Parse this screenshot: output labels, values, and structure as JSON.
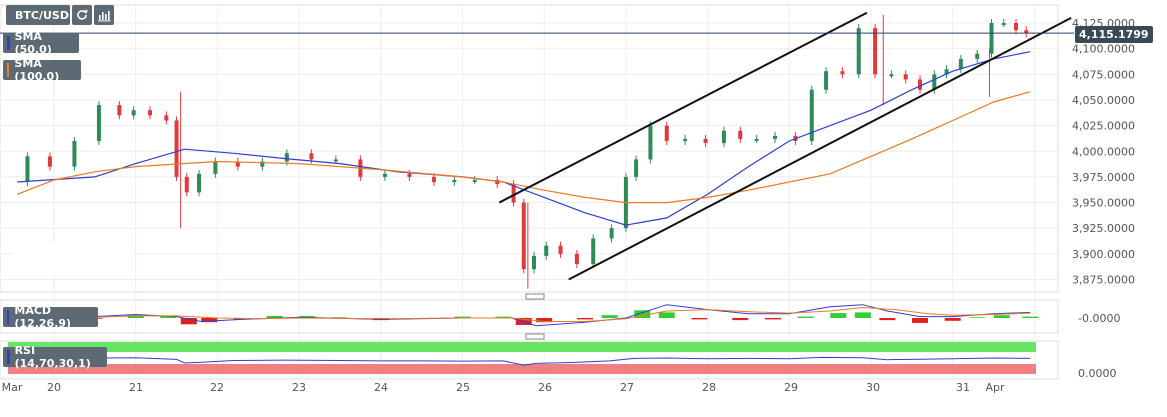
{
  "toolbar": {
    "symbol": "BTC/USD",
    "refresh_icon": "refresh-icon",
    "bars_icon": "bar-chart-icon"
  },
  "legend": {
    "sma50": "SMA (50,0)",
    "sma100": "SMA (100,0)",
    "macd": "MACD (12,26,9)",
    "rsi": "RSI (14,70,30,1)"
  },
  "price_tag": "4,115.1799",
  "chart_data": [
    {
      "type": "line",
      "subtype": "candlestick",
      "symbol": "BTC/USD",
      "x_ticks": [
        "Mar",
        "20",
        "21",
        "22",
        "23",
        "24",
        "25",
        "26",
        "27",
        "28",
        "29",
        "30",
        "31",
        "Apr"
      ],
      "y_ticks": [
        "4,125.0000",
        "4,100.0000",
        "4,075.0000",
        "4,050.0000",
        "4,025.0000",
        "4,000.0000",
        "3,975.0000",
        "3,950.0000",
        "3,925.0000",
        "3,900.0000",
        "3,875.0000"
      ],
      "ylim": [
        3866,
        4143
      ],
      "last_price": 4115.1799,
      "colors": {
        "up": "#2e8b57",
        "down": "#e0393e",
        "sma50": "#2e3fd0",
        "sma100": "#ec7a22",
        "trendline": "#111111",
        "price_line": "#2c3e66"
      },
      "price_path": [
        [
          19.55,
          3970
        ],
        [
          19.8,
          3995
        ],
        [
          20.1,
          3985
        ],
        [
          20.4,
          4010
        ],
        [
          20.7,
          4045
        ],
        [
          20.9,
          4035
        ],
        [
          21.05,
          4040
        ],
        [
          21.3,
          4035
        ],
        [
          21.45,
          4030
        ],
        [
          21.55,
          3975
        ],
        [
          21.7,
          3960
        ],
        [
          21.85,
          3978
        ],
        [
          22.1,
          3990
        ],
        [
          22.4,
          3985
        ],
        [
          22.7,
          3990
        ],
        [
          23.0,
          3998
        ],
        [
          23.3,
          3992
        ],
        [
          23.6,
          3992
        ],
        [
          23.9,
          3975
        ],
        [
          24.2,
          3978
        ],
        [
          24.5,
          3975
        ],
        [
          24.8,
          3970
        ],
        [
          25.0,
          3972
        ],
        [
          25.3,
          3972
        ],
        [
          25.55,
          3968
        ],
        [
          25.7,
          3950
        ],
        [
          25.8,
          3885
        ],
        [
          25.95,
          3898
        ],
        [
          26.1,
          3908
        ],
        [
          26.3,
          3900
        ],
        [
          26.5,
          3890
        ],
        [
          26.7,
          3915
        ],
        [
          26.95,
          3925
        ],
        [
          27.05,
          3975
        ],
        [
          27.2,
          3992
        ],
        [
          27.4,
          4025
        ],
        [
          27.6,
          4010
        ],
        [
          27.85,
          4012
        ],
        [
          28.1,
          4008
        ],
        [
          28.3,
          4020
        ],
        [
          28.5,
          4012
        ],
        [
          28.7,
          4012
        ],
        [
          28.95,
          4015
        ],
        [
          29.2,
          4010
        ],
        [
          29.35,
          4060
        ],
        [
          29.55,
          4078
        ],
        [
          29.75,
          4075
        ],
        [
          29.95,
          4120
        ],
        [
          30.15,
          4075
        ],
        [
          30.35,
          4075
        ],
        [
          30.5,
          4070
        ],
        [
          30.7,
          4060
        ],
        [
          30.85,
          4075
        ],
        [
          31.0,
          4080
        ],
        [
          31.2,
          4090
        ],
        [
          31.4,
          4095
        ],
        [
          31.55,
          4125
        ],
        [
          31.7,
          4125
        ],
        [
          31.85,
          4118
        ],
        [
          31.95,
          4115
        ]
      ],
      "spike_wicks": [
        [
          21.55,
          4058,
          3925
        ],
        [
          25.8,
          3950,
          3866
        ],
        [
          30.15,
          4133,
          4045
        ],
        [
          31.45,
          4100,
          4053
        ]
      ],
      "sma50": [
        [
          19.55,
          3970
        ],
        [
          20.5,
          3975
        ],
        [
          21.0,
          3988
        ],
        [
          21.6,
          4002
        ],
        [
          22.2,
          3998
        ],
        [
          22.8,
          3993
        ],
        [
          23.5,
          3988
        ],
        [
          24.2,
          3980
        ],
        [
          25.0,
          3975
        ],
        [
          25.5,
          3970
        ],
        [
          26.0,
          3955
        ],
        [
          26.5,
          3940
        ],
        [
          27.0,
          3928
        ],
        [
          27.5,
          3935
        ],
        [
          28.0,
          3958
        ],
        [
          28.5,
          3985
        ],
        [
          29.0,
          4010
        ],
        [
          29.5,
          4025
        ],
        [
          30.0,
          4040
        ],
        [
          30.5,
          4060
        ],
        [
          31.0,
          4078
        ],
        [
          31.5,
          4090
        ],
        [
          31.95,
          4097
        ]
      ],
      "sma100": [
        [
          19.55,
          3958
        ],
        [
          20.0,
          3972
        ],
        [
          20.5,
          3980
        ],
        [
          21.0,
          3985
        ],
        [
          22.0,
          3990
        ],
        [
          23.0,
          3988
        ],
        [
          24.0,
          3982
        ],
        [
          25.0,
          3975
        ],
        [
          25.5,
          3970
        ],
        [
          26.0,
          3962
        ],
        [
          26.5,
          3955
        ],
        [
          27.0,
          3950
        ],
        [
          27.5,
          3950
        ],
        [
          28.0,
          3955
        ],
        [
          28.5,
          3962
        ],
        [
          29.0,
          3970
        ],
        [
          29.5,
          3978
        ],
        [
          30.0,
          3995
        ],
        [
          30.5,
          4012
        ],
        [
          31.0,
          4030
        ],
        [
          31.5,
          4048
        ],
        [
          31.95,
          4058
        ]
      ],
      "trendlines": [
        [
          [
            25.45,
            3950
          ],
          [
            29.95,
            4135
          ]
        ],
        [
          [
            26.3,
            3875
          ],
          [
            32.45,
            4130
          ]
        ]
      ]
    },
    {
      "type": "bar",
      "subtype": "macd",
      "title": "MACD (12,26,9)",
      "y_ticks": [
        "-0.0000"
      ],
      "histogram": [
        [
          19.6,
          1.5
        ],
        [
          20.0,
          1.0
        ],
        [
          20.5,
          -0.5
        ],
        [
          21.0,
          2.0
        ],
        [
          21.4,
          1.5
        ],
        [
          21.65,
          -4.5
        ],
        [
          21.9,
          -3.0
        ],
        [
          22.3,
          -1.0
        ],
        [
          22.7,
          1.5
        ],
        [
          23.1,
          1.5
        ],
        [
          23.5,
          0.5
        ],
        [
          24.0,
          -1.5
        ],
        [
          24.5,
          -0.5
        ],
        [
          25.0,
          1.0
        ],
        [
          25.5,
          1.0
        ],
        [
          25.75,
          -5.0
        ],
        [
          26.0,
          -3.0
        ],
        [
          26.5,
          -1.0
        ],
        [
          26.8,
          2.0
        ],
        [
          27.2,
          5.5
        ],
        [
          27.5,
          4.0
        ],
        [
          27.9,
          -1.0
        ],
        [
          28.4,
          -1.5
        ],
        [
          28.8,
          -1.0
        ],
        [
          29.2,
          1.0
        ],
        [
          29.6,
          3.5
        ],
        [
          29.9,
          4.0
        ],
        [
          30.2,
          -1.5
        ],
        [
          30.6,
          -3.5
        ],
        [
          31.0,
          -2.0
        ],
        [
          31.3,
          0.5
        ],
        [
          31.6,
          2.0
        ],
        [
          31.95,
          1.0
        ]
      ],
      "macd_line": [
        [
          19.6,
          1
        ],
        [
          20.5,
          1
        ],
        [
          21.0,
          2.5
        ],
        [
          21.5,
          1
        ],
        [
          21.8,
          -2.5
        ],
        [
          22.3,
          -1
        ],
        [
          23.0,
          0.5
        ],
        [
          24.0,
          -1
        ],
        [
          25.0,
          0
        ],
        [
          25.6,
          0
        ],
        [
          25.9,
          -5.5
        ],
        [
          26.5,
          -3
        ],
        [
          27.0,
          0
        ],
        [
          27.5,
          9.5
        ],
        [
          28.0,
          6
        ],
        [
          28.5,
          3
        ],
        [
          29.0,
          3
        ],
        [
          29.5,
          8
        ],
        [
          29.9,
          9.5
        ],
        [
          30.2,
          5
        ],
        [
          30.6,
          1
        ],
        [
          31.0,
          1
        ],
        [
          31.5,
          3
        ],
        [
          31.95,
          4
        ]
      ],
      "signal_line": [
        [
          19.6,
          0
        ],
        [
          20.5,
          0.5
        ],
        [
          21.0,
          1.5
        ],
        [
          21.5,
          1.5
        ],
        [
          22.0,
          0
        ],
        [
          22.5,
          -0.5
        ],
        [
          23.0,
          0
        ],
        [
          24.0,
          -0.5
        ],
        [
          25.0,
          0
        ],
        [
          25.6,
          0
        ],
        [
          26.0,
          -2.5
        ],
        [
          26.5,
          -2.5
        ],
        [
          27.0,
          -0.5
        ],
        [
          27.5,
          5
        ],
        [
          28.0,
          6
        ],
        [
          28.5,
          4.5
        ],
        [
          29.0,
          3.5
        ],
        [
          29.5,
          5
        ],
        [
          29.9,
          7.5
        ],
        [
          30.3,
          6
        ],
        [
          30.7,
          3
        ],
        [
          31.0,
          2
        ],
        [
          31.5,
          2.5
        ],
        [
          31.95,
          3.5
        ]
      ]
    },
    {
      "type": "line",
      "subtype": "rsi",
      "title": "RSI (14,70,30,1)",
      "y_ticks": [
        "0.0000"
      ],
      "overbought_color": "#66e466",
      "oversold_color": "#f07f83",
      "rsi_line": [
        [
          19.6,
          58
        ],
        [
          20.0,
          60
        ],
        [
          20.5,
          62
        ],
        [
          21.0,
          63
        ],
        [
          21.5,
          55
        ],
        [
          21.6,
          38
        ],
        [
          21.8,
          42
        ],
        [
          22.2,
          50
        ],
        [
          22.8,
          52
        ],
        [
          23.5,
          50
        ],
        [
          24.0,
          48
        ],
        [
          24.5,
          48
        ],
        [
          25.0,
          47
        ],
        [
          25.5,
          48
        ],
        [
          25.75,
          28
        ],
        [
          25.9,
          36
        ],
        [
          26.3,
          40
        ],
        [
          26.8,
          48
        ],
        [
          27.1,
          60
        ],
        [
          27.5,
          62
        ],
        [
          28.0,
          58
        ],
        [
          28.5,
          60
        ],
        [
          29.0,
          58
        ],
        [
          29.4,
          65
        ],
        [
          29.9,
          63
        ],
        [
          30.2,
          54
        ],
        [
          30.6,
          56
        ],
        [
          31.0,
          58
        ],
        [
          31.5,
          62
        ],
        [
          31.95,
          60
        ]
      ]
    }
  ]
}
